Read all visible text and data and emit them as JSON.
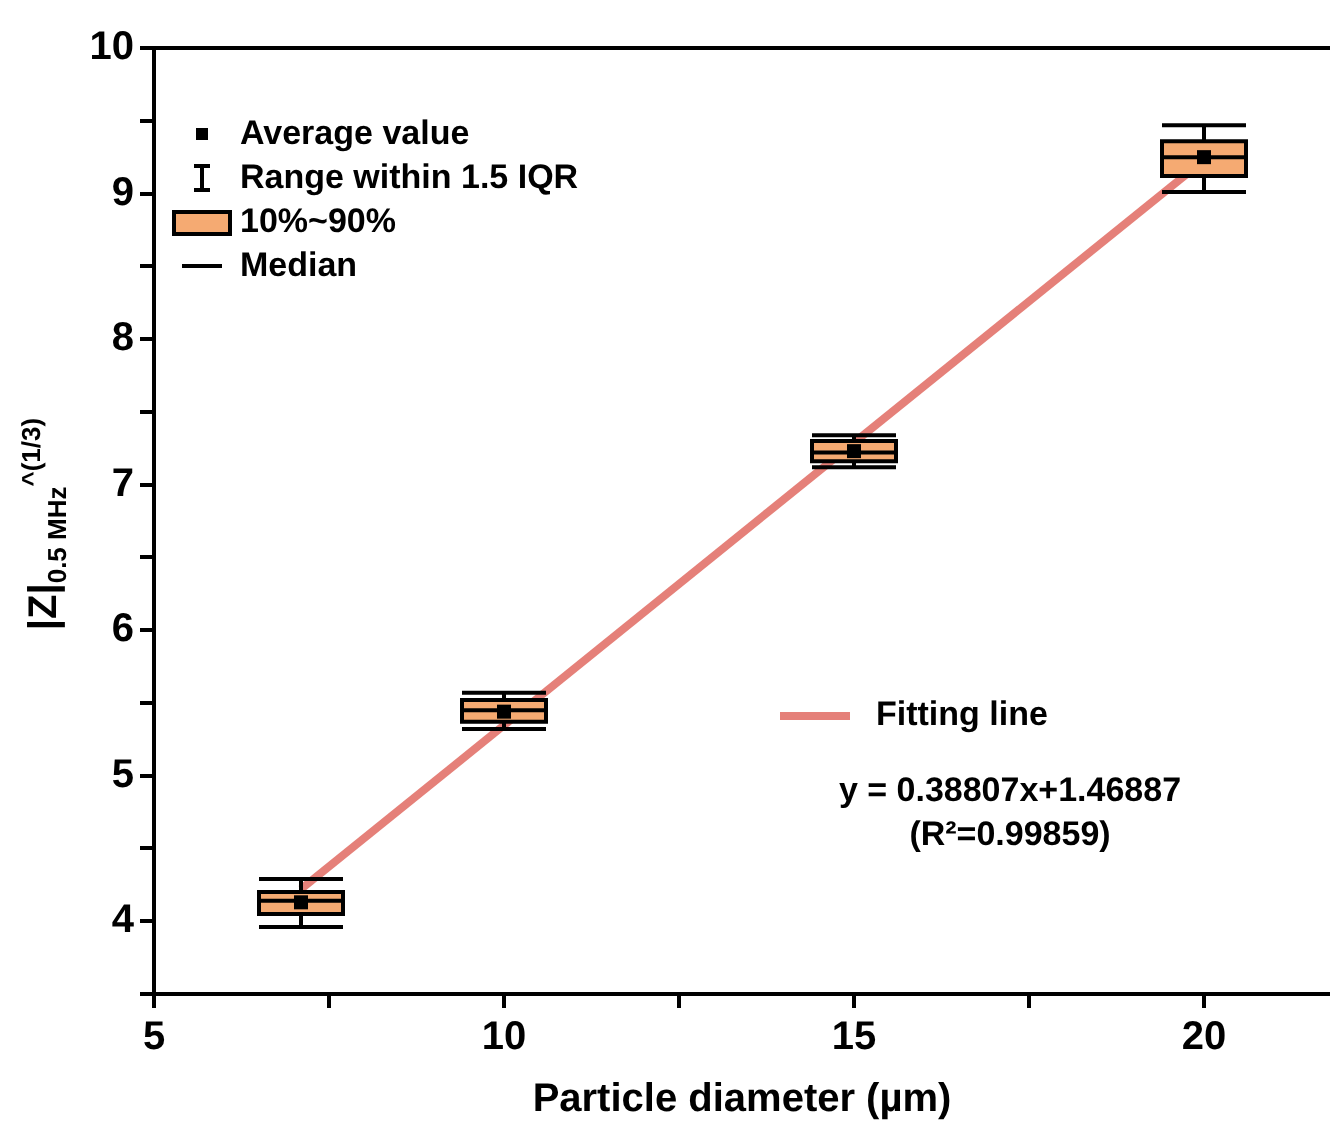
{
  "chart_data": {
    "type": "box",
    "xlabel": "Particle diameter (µm)",
    "ylabel": "|Z|$_{0.5 MHz}$$^{^(1/3)}$",
    "xlim": [
      5,
      21.8
    ],
    "xticks": [
      5,
      {
        "value": 7.5,
        "label": null
      },
      10,
      {
        "value": 12.5,
        "label": null
      },
      15,
      {
        "value": 17.5,
        "label": null
      },
      20
    ],
    "ylim": [
      3.5,
      10
    ],
    "yticks": [
      {
        "value": 3.5,
        "label": null
      },
      4,
      {
        "value": 4.5,
        "label": null
      },
      5,
      {
        "value": 5.5,
        "label": null
      },
      6,
      {
        "value": 6.5,
        "label": null
      },
      7,
      {
        "value": 7.5,
        "label": null
      },
      8,
      {
        "value": 8.5,
        "label": null
      },
      9,
      {
        "value": 9.5,
        "label": null
      },
      10
    ],
    "grid": false,
    "legend": "right",
    "annotations": [
      "Average value",
      "Range within 1.5 IQR",
      "10%~90%",
      "Median",
      "y = 0.38807x+1.46887",
      "(R²=0.99859)"
    ],
    "series": [
      {
        "color": "#f5aa72",
        "x": [
          7.1,
          10,
          15,
          20
        ],
        "boxes": [
          {
            "low": 3.96,
            "q1": 4.05,
            "median": 4.14,
            "q3": 4.2,
            "high": 4.29,
            "mean": 4.13
          },
          {
            "low": 5.32,
            "q1": 5.37,
            "median": 5.45,
            "q3": 5.52,
            "high": 5.57,
            "mean": 5.44
          },
          {
            "low": 7.12,
            "q1": 7.16,
            "median": 7.22,
            "q3": 7.3,
            "high": 7.34,
            "mean": 7.23
          },
          {
            "low": 9.01,
            "q1": 9.12,
            "median": 9.25,
            "q3": 9.36,
            "high": 9.47,
            "mean": 9.25
          }
        ]
      },
      {
        "type": "line",
        "name": "Fitting line",
        "color": "#e58079",
        "x": [
          7.1,
          20
        ],
        "values": [
          4.22,
          9.23
        ]
      }
    ]
  }
}
